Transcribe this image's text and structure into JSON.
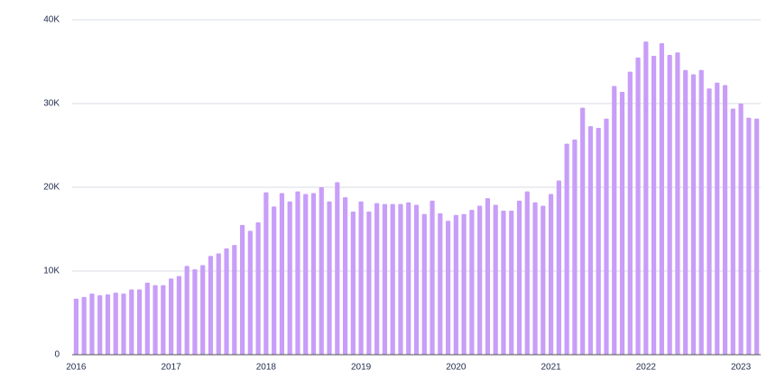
{
  "chart_data": {
    "type": "bar",
    "categories": [
      "2016",
      null,
      null,
      null,
      null,
      null,
      null,
      null,
      null,
      null,
      null,
      null,
      "2017",
      null,
      null,
      null,
      null,
      null,
      null,
      null,
      null,
      null,
      null,
      null,
      "2018",
      null,
      null,
      null,
      null,
      null,
      null,
      null,
      null,
      null,
      null,
      null,
      "2019",
      null,
      null,
      null,
      null,
      null,
      null,
      null,
      null,
      null,
      null,
      null,
      "2020",
      null,
      null,
      null,
      null,
      null,
      null,
      null,
      null,
      null,
      null,
      null,
      "2021",
      null,
      null,
      null,
      null,
      null,
      null,
      null,
      null,
      null,
      null,
      null,
      "2022",
      null,
      null,
      null,
      null,
      null,
      null,
      null,
      null,
      null,
      null,
      null,
      "2023",
      null,
      null
    ],
    "values": [
      6700,
      6900,
      7300,
      7100,
      7200,
      7400,
      7300,
      7800,
      7800,
      8600,
      8300,
      8300,
      9100,
      9400,
      10600,
      10200,
      10700,
      11800,
      12100,
      12700,
      13100,
      15500,
      14800,
      15800,
      19400,
      17700,
      19300,
      18300,
      19500,
      19200,
      19300,
      20000,
      18300,
      20600,
      18800,
      17100,
      18300,
      17100,
      18100,
      18000,
      18000,
      18000,
      18200,
      17900,
      16800,
      18400,
      16900,
      16000,
      16700,
      16800,
      17300,
      17800,
      18700,
      17900,
      17200,
      17200,
      18400,
      19500,
      18200,
      17800,
      19200,
      20800,
      25200,
      25700,
      29500,
      27300,
      27100,
      28200,
      32100,
      31400,
      33800,
      35500,
      37400,
      35700,
      37200,
      35800,
      36100,
      34000,
      33500,
      34000,
      31800,
      32500,
      32200,
      29400,
      30000,
      28300,
      28200
    ],
    "color": "#c89ef8",
    "ylim": [
      0,
      40000
    ],
    "yticks": [
      0,
      {
        "value": 10000,
        "label": "10K"
      },
      {
        "value": 20000,
        "label": "20K"
      },
      {
        "value": 30000,
        "label": "30K"
      },
      {
        "value": 40000,
        "label": "40K"
      }
    ],
    "grid": true
  }
}
